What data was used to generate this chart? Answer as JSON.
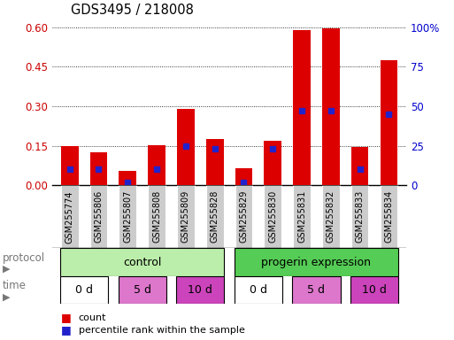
{
  "title": "GDS3495 / 218008",
  "samples": [
    "GSM255774",
    "GSM255806",
    "GSM255807",
    "GSM255808",
    "GSM255809",
    "GSM255828",
    "GSM255829",
    "GSM255830",
    "GSM255831",
    "GSM255832",
    "GSM255833",
    "GSM255834"
  ],
  "count_values": [
    0.15,
    0.125,
    0.055,
    0.152,
    0.29,
    0.175,
    0.065,
    0.17,
    0.59,
    0.595,
    0.145,
    0.475
  ],
  "percentile_values": [
    0.1,
    0.1,
    0.02,
    0.1,
    0.25,
    0.23,
    0.02,
    0.23,
    0.47,
    0.47,
    0.1,
    0.45
  ],
  "ylim_left": [
    0,
    0.6
  ],
  "ylim_right": [
    0,
    100
  ],
  "yticks_left": [
    0,
    0.15,
    0.3,
    0.45,
    0.6
  ],
  "yticks_right": [
    0,
    25,
    50,
    75,
    100
  ],
  "bar_color_red": "#dd0000",
  "bar_color_blue": "#2222cc",
  "tick_label_color_left": "#cc0000",
  "tick_label_color_right": "#0000cc",
  "bar_width": 0.6,
  "bg_color": "#ffffff",
  "xticklabel_bg": "#cccccc",
  "protocol_light_green": "#bbeeaa",
  "protocol_dark_green": "#55cc55",
  "time_white": "#ffffff",
  "time_pink": "#dd77cc",
  "time_magenta": "#cc44bb",
  "right_labels": [
    "0",
    "25",
    "50",
    "75",
    "100%"
  ]
}
